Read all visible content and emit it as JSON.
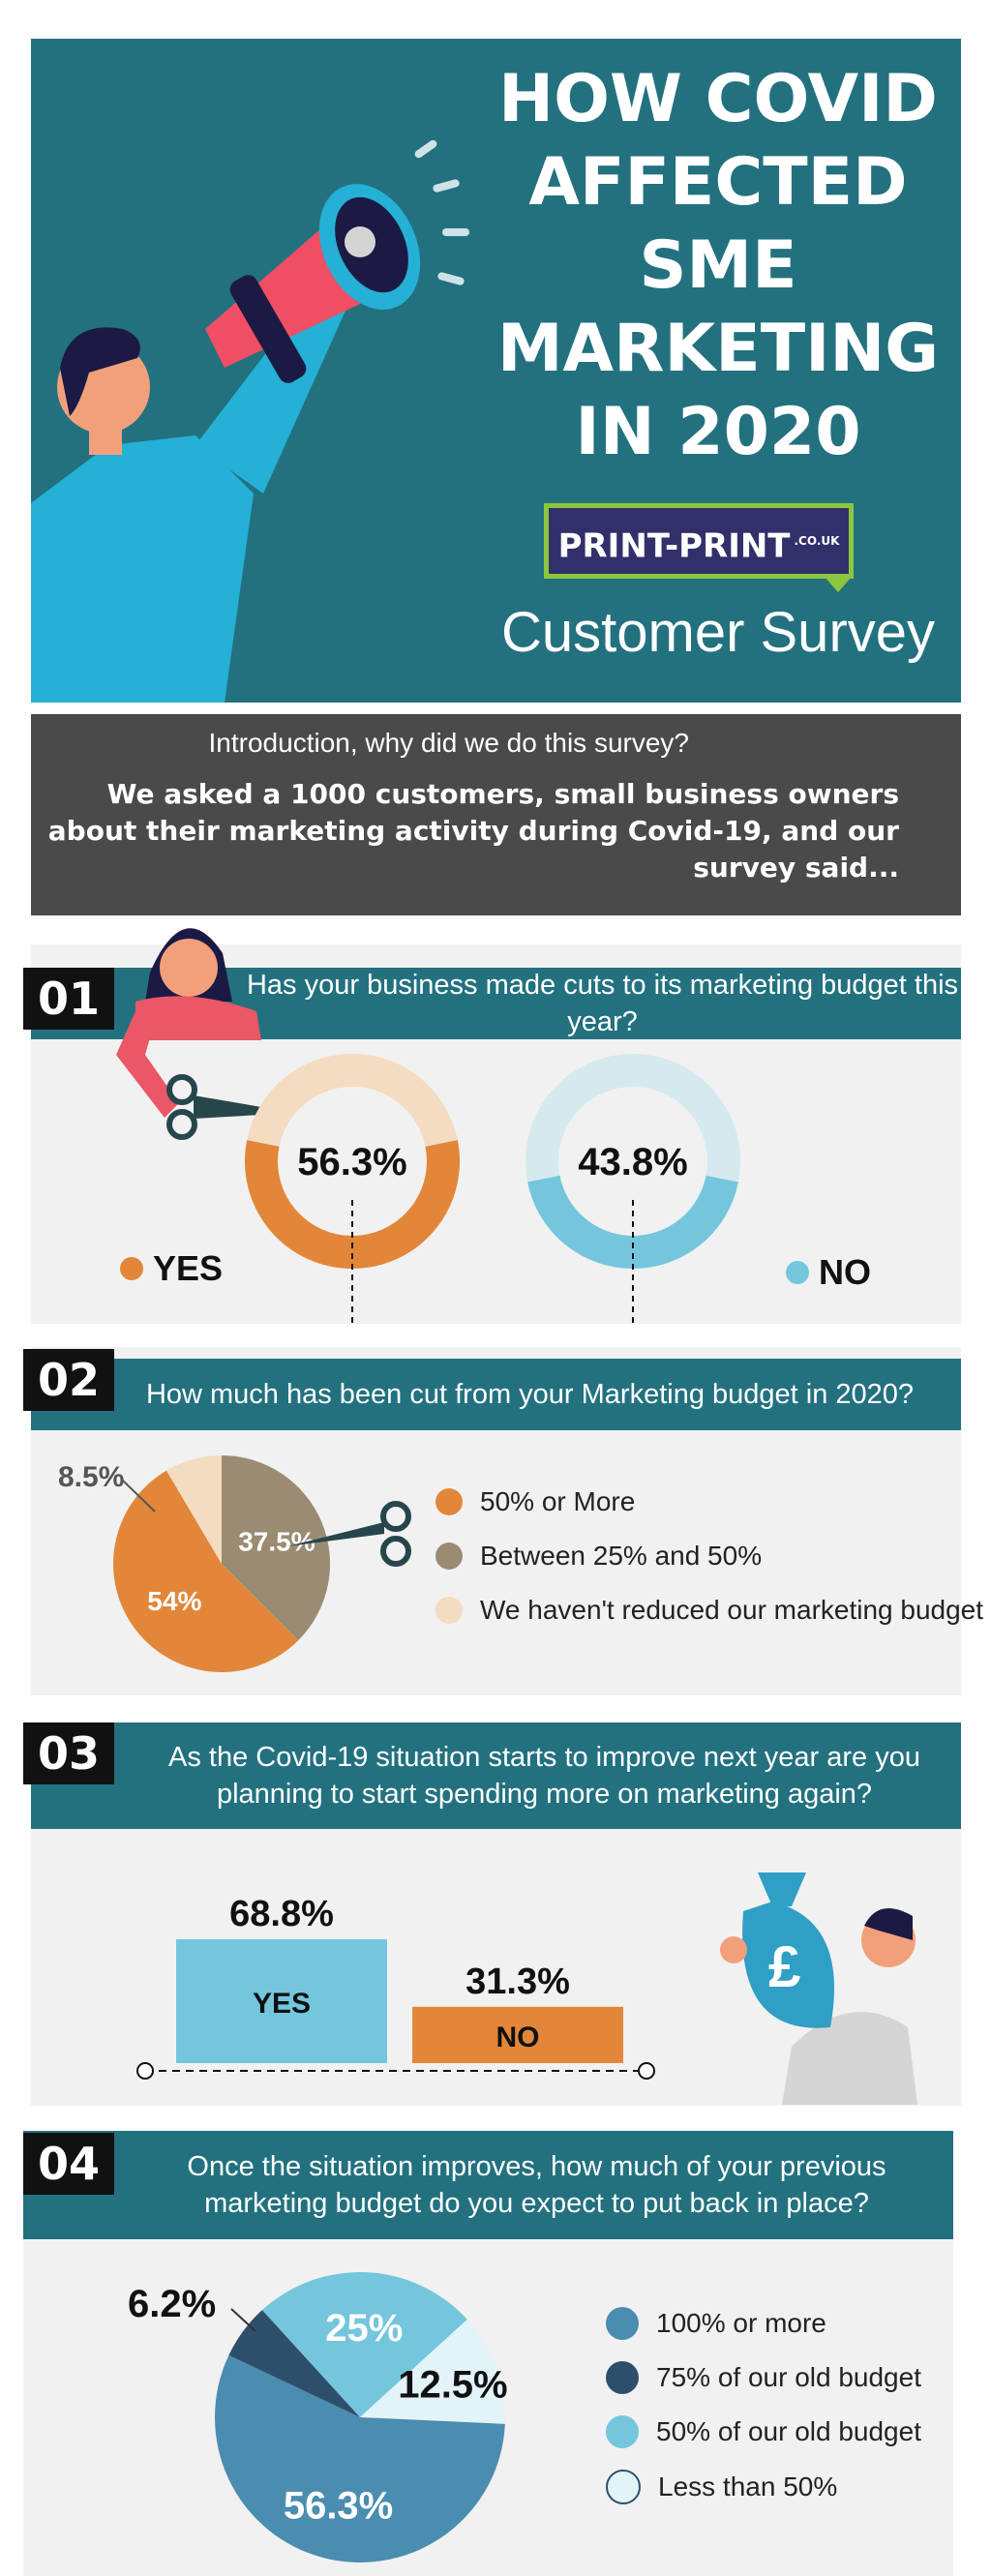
{
  "header": {
    "title_lines": [
      "HOW COVID",
      "AFFECTED",
      "SME",
      "MARKETING",
      "IN 2020"
    ],
    "logo_text": "PRINT-PRINT",
    "logo_sub": ".CO.UK",
    "subtitle": "Customer Survey"
  },
  "intro": {
    "question": "Introduction, why did we do this survey?",
    "answer": "We asked a 1000 customers, small business owners about their marketing activity during Covid-19, and our survey said..."
  },
  "questions": [
    {
      "number": "01",
      "text": "Has your business made cuts to its marketing budget this year?"
    },
    {
      "number": "02",
      "text": "How much has been cut from your Marketing budget in 2020?"
    },
    {
      "number": "03",
      "text": "As the Covid-19 situation starts to improve next year are you planning to start spending more on marketing again?"
    },
    {
      "number": "04",
      "text": "Once the situation improves, how much of your previous marketing budget do you expect to put back in place?"
    }
  ],
  "colors": {
    "teal": "#23717f",
    "orange": "#e2873a",
    "light_blue": "#74c6dd",
    "taupe": "#9a8b72",
    "peach": "#f4dcc1",
    "steel_blue": "#4a8db0",
    "navy": "#2e4f6b",
    "pale_blue": "#e3f4f9"
  },
  "chart_data": [
    {
      "type": "pie",
      "subtype": "donut-pair",
      "categories": [
        "YES",
        "NO"
      ],
      "values": [
        56.3,
        43.8
      ],
      "labels": [
        "56.3%",
        "43.8%"
      ],
      "colors": [
        "#e2873a",
        "#74c6dd"
      ]
    },
    {
      "type": "pie",
      "categories": [
        "50% or More",
        "Between 25% and 50%",
        "We haven't reduced our marketing budget"
      ],
      "values": [
        54,
        37.5,
        8.5
      ],
      "labels": [
        "54%",
        "37.5%",
        "8.5%"
      ],
      "colors": [
        "#e2873a",
        "#9a8b72",
        "#f4dcc1"
      ]
    },
    {
      "type": "bar",
      "categories": [
        "YES",
        "NO"
      ],
      "values": [
        68.8,
        31.3
      ],
      "labels": [
        "68.8%",
        "31.3%"
      ],
      "colors": [
        "#74c6dd",
        "#e2873a"
      ]
    },
    {
      "type": "pie",
      "categories": [
        "100% or more",
        "75% of our old budget",
        "50% of our old budget",
        "Less than 50%"
      ],
      "values": [
        56.3,
        6.2,
        25,
        12.5
      ],
      "labels": [
        "56.3%",
        "6.2%",
        "25%",
        "12.5%"
      ],
      "colors": [
        "#4a8db0",
        "#2e4f6b",
        "#74c6dd",
        "#e3f4f9"
      ]
    }
  ]
}
